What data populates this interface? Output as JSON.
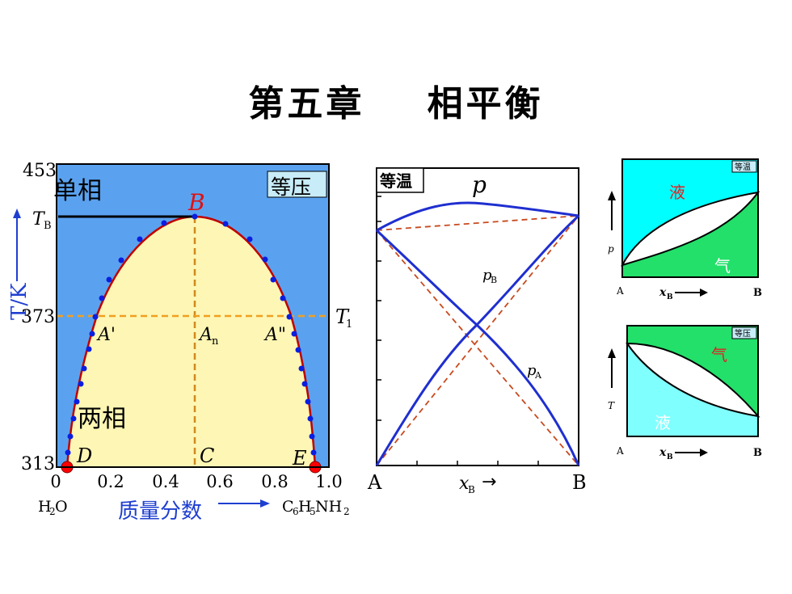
{
  "title": "第五章    相平衡",
  "colors": {
    "blue_bg": "#5aa2f0",
    "yellow_fill": "#fef6b4",
    "curve_red": "#c00000",
    "dot_blue": "#0a1ee0",
    "dashed_orange": "#d08a1e",
    "iso_blue": "#1f2fd0",
    "iso_dashed": "#c84a1e",
    "cyan": "#00ffff",
    "green": "#22e06a",
    "light_cyan": "#80ffff"
  },
  "phase_diagram": {
    "y_ticks": {
      "top": "453",
      "mid": "373",
      "bottom": "313"
    },
    "t_b_label": "T",
    "t_b_sub": "B",
    "y_axis_label": "T/K",
    "x_ticks": [
      "0",
      "0.2",
      "0.4",
      "0.6",
      "0.8",
      "1.0"
    ],
    "x_axis_label": "质量分数",
    "left_compound": {
      "a": "H",
      "b": "2",
      "c": "O"
    },
    "right_compound": {
      "c6": "C",
      "n6": "6",
      "h": "H",
      "n5": "5",
      "rest": "NH",
      "n2": "2"
    },
    "single_phase_label": "单相",
    "two_phase_label": "两相",
    "isobaric_label": "等压",
    "point_B": "B",
    "point_C": "C",
    "point_D": "D",
    "point_E": "E",
    "point_A1": "A'",
    "point_A2": "A\"",
    "point_An": "A",
    "point_An_sub": "n",
    "t1_label": "T",
    "t1_sub": "1"
  },
  "isothermal_diagram": {
    "label": "等温",
    "p_label": "p",
    "pB_label": "p",
    "pB_sub": "B",
    "pA_label": "p",
    "pA_sub": "A",
    "x_left": "A",
    "x_right": "B",
    "x_axis": "x",
    "x_axis_sub": "B",
    "arrow": "→"
  },
  "small_isothermal": {
    "tag": "等温",
    "liquid": "液",
    "gas": "气",
    "y_label": "p",
    "x_left": "A",
    "x_right": "B",
    "x_label": "x",
    "x_sub": "B"
  },
  "small_isobaric": {
    "tag": "等压",
    "liquid": "液",
    "gas": "气",
    "y_label": "T",
    "x_left": "A",
    "x_right": "B",
    "x_label": "x",
    "x_sub": "B"
  }
}
